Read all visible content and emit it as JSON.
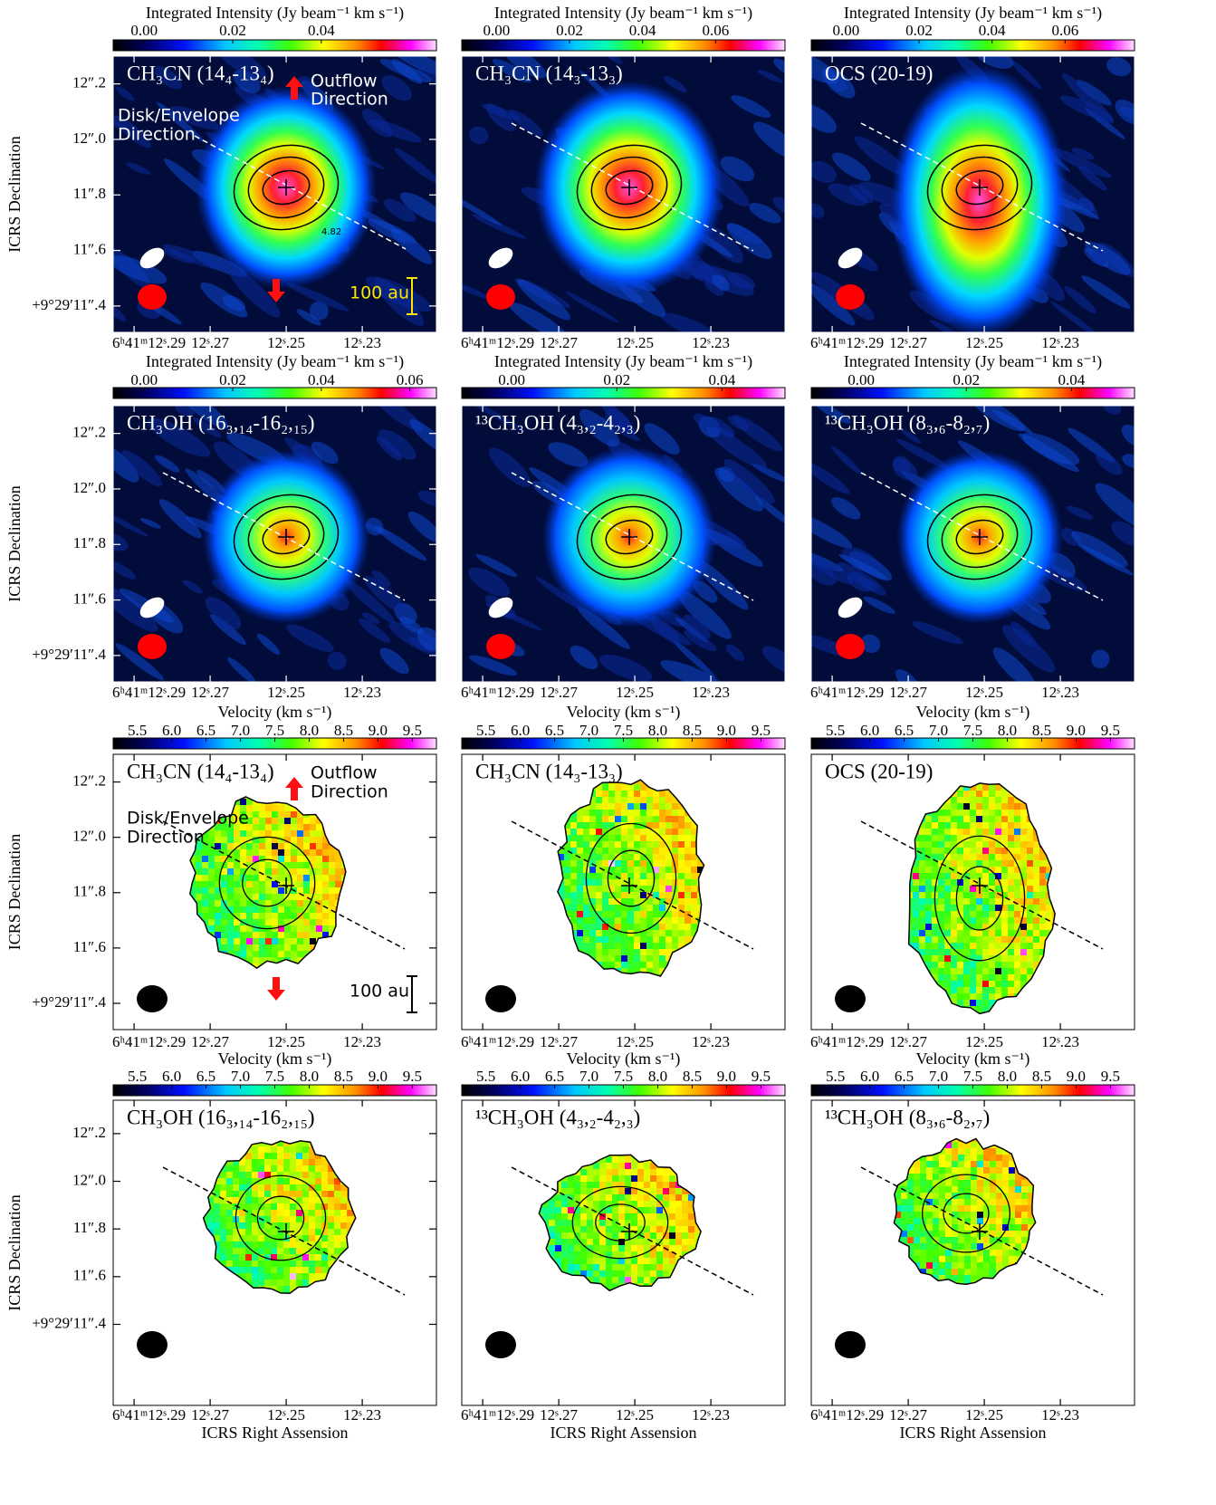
{
  "chart_data": [
    {
      "type": "moment0",
      "label": "CH₃CN (14₄-13₄)",
      "ylabel": "ICRS Declination",
      "colorbar": {
        "title": "Integrated Intensity (Jy beam⁻¹ km s⁻¹)",
        "lim": [
          -0.007,
          0.066
        ],
        "ticks": [
          {
            "value": 0,
            "label": "0.00"
          },
          0.02,
          0.04
        ]
      },
      "xlim": [
        12.2955,
        12.2105
      ],
      "xticks": [
        {
          "value": 12.29,
          "label": "6ʰ41ᵐ12ˢ.29"
        },
        {
          "value": 12.27,
          "label": "12ˢ.27"
        },
        {
          "value": 12.25,
          "label": "12ˢ.25"
        },
        {
          "value": 12.23,
          "label": "12ˢ.23"
        }
      ],
      "ylim": [
        11.305,
        12.3
      ],
      "yticks": [
        {
          "value": 12.2,
          "label": "12″.2"
        },
        {
          "value": 12.0,
          "label": "12″.0"
        },
        {
          "value": 11.8,
          "label": "11″.8"
        },
        {
          "value": 11.6,
          "label": "11″.6"
        },
        {
          "value": 11.4,
          "label": "+9°29′11″.4"
        }
      ],
      "annotations": [
        "Outflow",
        "Direction",
        "Disk/Envelope",
        "Direction",
        "100 au",
        "4.82"
      ]
    },
    {
      "type": "moment0",
      "label": "CH₃CN (14₃-13₃)",
      "colorbar": {
        "title": "Integrated Intensity (Jy beam⁻¹ km s⁻¹)",
        "lim": [
          -0.0095,
          0.079
        ],
        "ticks": [
          {
            "value": 0,
            "label": "0.00"
          },
          0.02,
          0.04,
          0.06
        ]
      },
      "xlim": [
        12.2955,
        12.2105
      ],
      "xticks": [
        {
          "value": 12.29,
          "label": "6ʰ41ᵐ12ˢ.29"
        },
        {
          "value": 12.27,
          "label": "12ˢ.27"
        },
        {
          "value": 12.25,
          "label": "12ˢ.25"
        },
        {
          "value": 12.23,
          "label": "12ˢ.23"
        }
      ]
    },
    {
      "type": "moment0",
      "label": "OCS (20-19)",
      "colorbar": {
        "title": "Integrated Intensity (Jy beam⁻¹ km s⁻¹)",
        "lim": [
          -0.0095,
          0.079
        ],
        "ticks": [
          {
            "value": 0,
            "label": "0.00"
          },
          0.02,
          0.04,
          0.06
        ]
      },
      "xlim": [
        12.2955,
        12.2105
      ],
      "xticks": [
        {
          "value": 12.29,
          "label": "6ʰ41ᵐ12ˢ.29"
        },
        {
          "value": 12.27,
          "label": "12ˢ.27"
        },
        {
          "value": 12.25,
          "label": "12ˢ.25"
        },
        {
          "value": 12.23,
          "label": "12ˢ.23"
        }
      ]
    },
    {
      "type": "moment0",
      "label": "CH₃OH (16₃,₁₄-16₂,₁₅)",
      "ylabel": "ICRS Declination",
      "colorbar": {
        "title": "Integrated Intensity (Jy beam⁻¹ km s⁻¹)",
        "lim": [
          -0.007,
          0.066
        ],
        "ticks": [
          {
            "value": 0,
            "label": "0.00"
          },
          0.02,
          0.04,
          0.06
        ]
      },
      "xlim": [
        12.2955,
        12.2105
      ],
      "xticks": [
        {
          "value": 12.29,
          "label": "6ʰ41ᵐ12ˢ.29"
        },
        {
          "value": 12.27,
          "label": "12ˢ.27"
        },
        {
          "value": 12.25,
          "label": "12ˢ.25"
        },
        {
          "value": 12.23,
          "label": "12ˢ.23"
        }
      ],
      "ylim": [
        11.305,
        12.3
      ],
      "yticks": [
        {
          "value": 12.2,
          "label": "12″.2"
        },
        {
          "value": 12.0,
          "label": "12″.0"
        },
        {
          "value": 11.8,
          "label": "11″.8"
        },
        {
          "value": 11.6,
          "label": "11″.6"
        },
        {
          "value": 11.4,
          "label": "+9°29′11″.4"
        }
      ]
    },
    {
      "type": "moment0",
      "label": "¹³CH₃OH (4₃,₂-4₂,₃)",
      "colorbar": {
        "title": "Integrated Intensity (Jy beam⁻¹ km s⁻¹)",
        "lim": [
          -0.0095,
          0.052
        ],
        "ticks": [
          {
            "value": 0,
            "label": "0.00"
          },
          0.02,
          0.04
        ]
      },
      "xlim": [
        12.2955,
        12.2105
      ],
      "xticks": [
        {
          "value": 12.29,
          "label": "6ʰ41ᵐ12ˢ.29"
        },
        {
          "value": 12.27,
          "label": "12ˢ.27"
        },
        {
          "value": 12.25,
          "label": "12ˢ.25"
        },
        {
          "value": 12.23,
          "label": "12ˢ.23"
        }
      ]
    },
    {
      "type": "moment0",
      "label": "¹³CH₃OH (8₃,₆-8₂,₇)",
      "colorbar": {
        "title": "Integrated Intensity (Jy beam⁻¹ km s⁻¹)",
        "lim": [
          -0.0095,
          0.052
        ],
        "ticks": [
          {
            "value": 0,
            "label": "0.00"
          },
          0.02,
          0.04
        ]
      },
      "xlim": [
        12.2955,
        12.2105
      ],
      "xticks": [
        {
          "value": 12.29,
          "label": "6ʰ41ᵐ12ˢ.29"
        },
        {
          "value": 12.27,
          "label": "12ˢ.27"
        },
        {
          "value": 12.25,
          "label": "12ˢ.25"
        },
        {
          "value": 12.23,
          "label": "12ˢ.23"
        }
      ]
    },
    {
      "type": "moment1",
      "label": "CH₃CN (14₄-13₄)",
      "ylabel": "ICRS Declination",
      "colorbar": {
        "title": "Velocity (km s⁻¹)",
        "lim": [
          5.15,
          9.85
        ],
        "ticks": [
          5.5,
          {
            "value": 6,
            "label": "6.0"
          },
          6.5,
          {
            "value": 7,
            "label": "7.0"
          },
          7.5,
          {
            "value": 8,
            "label": "8.0"
          },
          8.5,
          {
            "value": 9,
            "label": "9.0"
          },
          9.5
        ]
      },
      "xlim": [
        12.2955,
        12.2105
      ],
      "xticks": [
        {
          "value": 12.29,
          "label": "6ʰ41ᵐ12ˢ.29"
        },
        {
          "value": 12.27,
          "label": "12ˢ.27"
        },
        {
          "value": 12.25,
          "label": "12ˢ.25"
        },
        {
          "value": 12.23,
          "label": "12ˢ.23"
        }
      ],
      "ylim": [
        11.305,
        12.3
      ],
      "yticks": [
        {
          "value": 12.2,
          "label": "12″.2"
        },
        {
          "value": 12.0,
          "label": "12″.0"
        },
        {
          "value": 11.8,
          "label": "11″.8"
        },
        {
          "value": 11.6,
          "label": "11″.6"
        },
        {
          "value": 11.4,
          "label": "+9°29′11″.4"
        }
      ],
      "annotations": [
        "Outflow",
        "Direction",
        "Disk/Envelope",
        "Direction",
        "100 au"
      ]
    },
    {
      "type": "moment1",
      "label": "CH₃CN (14₃-13₃)",
      "colorbar": {
        "title": "Velocity (km s⁻¹)",
        "lim": [
          5.15,
          9.85
        ],
        "ticks": [
          5.5,
          {
            "value": 6,
            "label": "6.0"
          },
          6.5,
          {
            "value": 7,
            "label": "7.0"
          },
          7.5,
          {
            "value": 8,
            "label": "8.0"
          },
          8.5,
          {
            "value": 9,
            "label": "9.0"
          },
          9.5
        ]
      },
      "xlim": [
        12.2955,
        12.2105
      ],
      "xticks": [
        {
          "value": 12.29,
          "label": "6ʰ41ᵐ12ˢ.29"
        },
        {
          "value": 12.27,
          "label": "12ˢ.27"
        },
        {
          "value": 12.25,
          "label": "12ˢ.25"
        },
        {
          "value": 12.23,
          "label": "12ˢ.23"
        }
      ]
    },
    {
      "type": "moment1",
      "label": "OCS (20-19)",
      "colorbar": {
        "title": "Velocity (km s⁻¹)",
        "lim": [
          5.15,
          9.85
        ],
        "ticks": [
          5.5,
          {
            "value": 6,
            "label": "6.0"
          },
          6.5,
          {
            "value": 7,
            "label": "7.0"
          },
          7.5,
          {
            "value": 8,
            "label": "8.0"
          },
          8.5,
          {
            "value": 9,
            "label": "9.0"
          },
          9.5
        ]
      },
      "xlim": [
        12.2955,
        12.2105
      ],
      "xticks": [
        {
          "value": 12.29,
          "label": "6ʰ41ᵐ12ˢ.29"
        },
        {
          "value": 12.27,
          "label": "12ˢ.27"
        },
        {
          "value": 12.25,
          "label": "12ˢ.25"
        },
        {
          "value": 12.23,
          "label": "12ˢ.23"
        }
      ]
    },
    {
      "type": "moment1",
      "label": "CH₃OH (16₃,₁₄-16₂,₁₅)",
      "ylabel": "ICRS Declination",
      "xlabel": "ICRS Right Assension",
      "colorbar": {
        "title": "Velocity (km s⁻¹)",
        "lim": [
          5.15,
          9.85
        ],
        "ticks": [
          5.5,
          {
            "value": 6,
            "label": "6.0"
          },
          6.5,
          {
            "value": 7,
            "label": "7.0"
          },
          7.5,
          {
            "value": 8,
            "label": "8.0"
          },
          8.5,
          {
            "value": 9,
            "label": "9.0"
          },
          9.5
        ]
      },
      "xlim": [
        12.2955,
        12.2105
      ],
      "xticks": [
        {
          "value": 12.29,
          "label": "6ʰ41ᵐ12ˢ.29"
        },
        {
          "value": 12.27,
          "label": "12ˢ.27"
        },
        {
          "value": 12.25,
          "label": "12ˢ.25"
        },
        {
          "value": 12.23,
          "label": "12ˢ.23"
        }
      ],
      "ylim": [
        11.06,
        12.34
      ],
      "yticks": [
        {
          "value": 12.2,
          "label": "12″.2"
        },
        {
          "value": 12.0,
          "label": "12″.0"
        },
        {
          "value": 11.8,
          "label": "11″.8"
        },
        {
          "value": 11.6,
          "label": "11″.6"
        },
        {
          "value": 11.4,
          "label": "+9°29′11″.4"
        }
      ]
    },
    {
      "type": "moment1",
      "label": "¹³CH₃OH (4₃,₂-4₂,₃)",
      "xlabel": "ICRS Right Assension",
      "colorbar": {
        "title": "Velocity (km s⁻¹)",
        "lim": [
          5.15,
          9.85
        ],
        "ticks": [
          5.5,
          {
            "value": 6,
            "label": "6.0"
          },
          6.5,
          {
            "value": 7,
            "label": "7.0"
          },
          7.5,
          {
            "value": 8,
            "label": "8.0"
          },
          8.5,
          {
            "value": 9,
            "label": "9.0"
          },
          9.5
        ]
      },
      "xlim": [
        12.2955,
        12.2105
      ],
      "xticks": [
        {
          "value": 12.29,
          "label": "6ʰ41ᵐ12ˢ.29"
        },
        {
          "value": 12.27,
          "label": "12ˢ.27"
        },
        {
          "value": 12.25,
          "label": "12ˢ.25"
        },
        {
          "value": 12.23,
          "label": "12ˢ.23"
        }
      ]
    },
    {
      "type": "moment1",
      "label": "¹³CH₃OH (8₃,₆-8₂,₇)",
      "xlabel": "ICRS Right Assension",
      "colorbar": {
        "title": "Velocity (km s⁻¹)",
        "lim": [
          5.15,
          9.85
        ],
        "ticks": [
          5.5,
          {
            "value": 6,
            "label": "6.0"
          },
          6.5,
          {
            "value": 7,
            "label": "7.0"
          },
          7.5,
          {
            "value": 8,
            "label": "8.0"
          },
          8.5,
          {
            "value": 9,
            "label": "9.0"
          },
          9.5
        ]
      },
      "xlim": [
        12.2955,
        12.2105
      ],
      "xticks": [
        {
          "value": 12.29,
          "label": "6ʰ41ᵐ12ˢ.29"
        },
        {
          "value": 12.27,
          "label": "12ˢ.27"
        },
        {
          "value": 12.25,
          "label": "12ˢ.25"
        },
        {
          "value": 12.23,
          "label": "12ˢ.23"
        }
      ]
    }
  ]
}
